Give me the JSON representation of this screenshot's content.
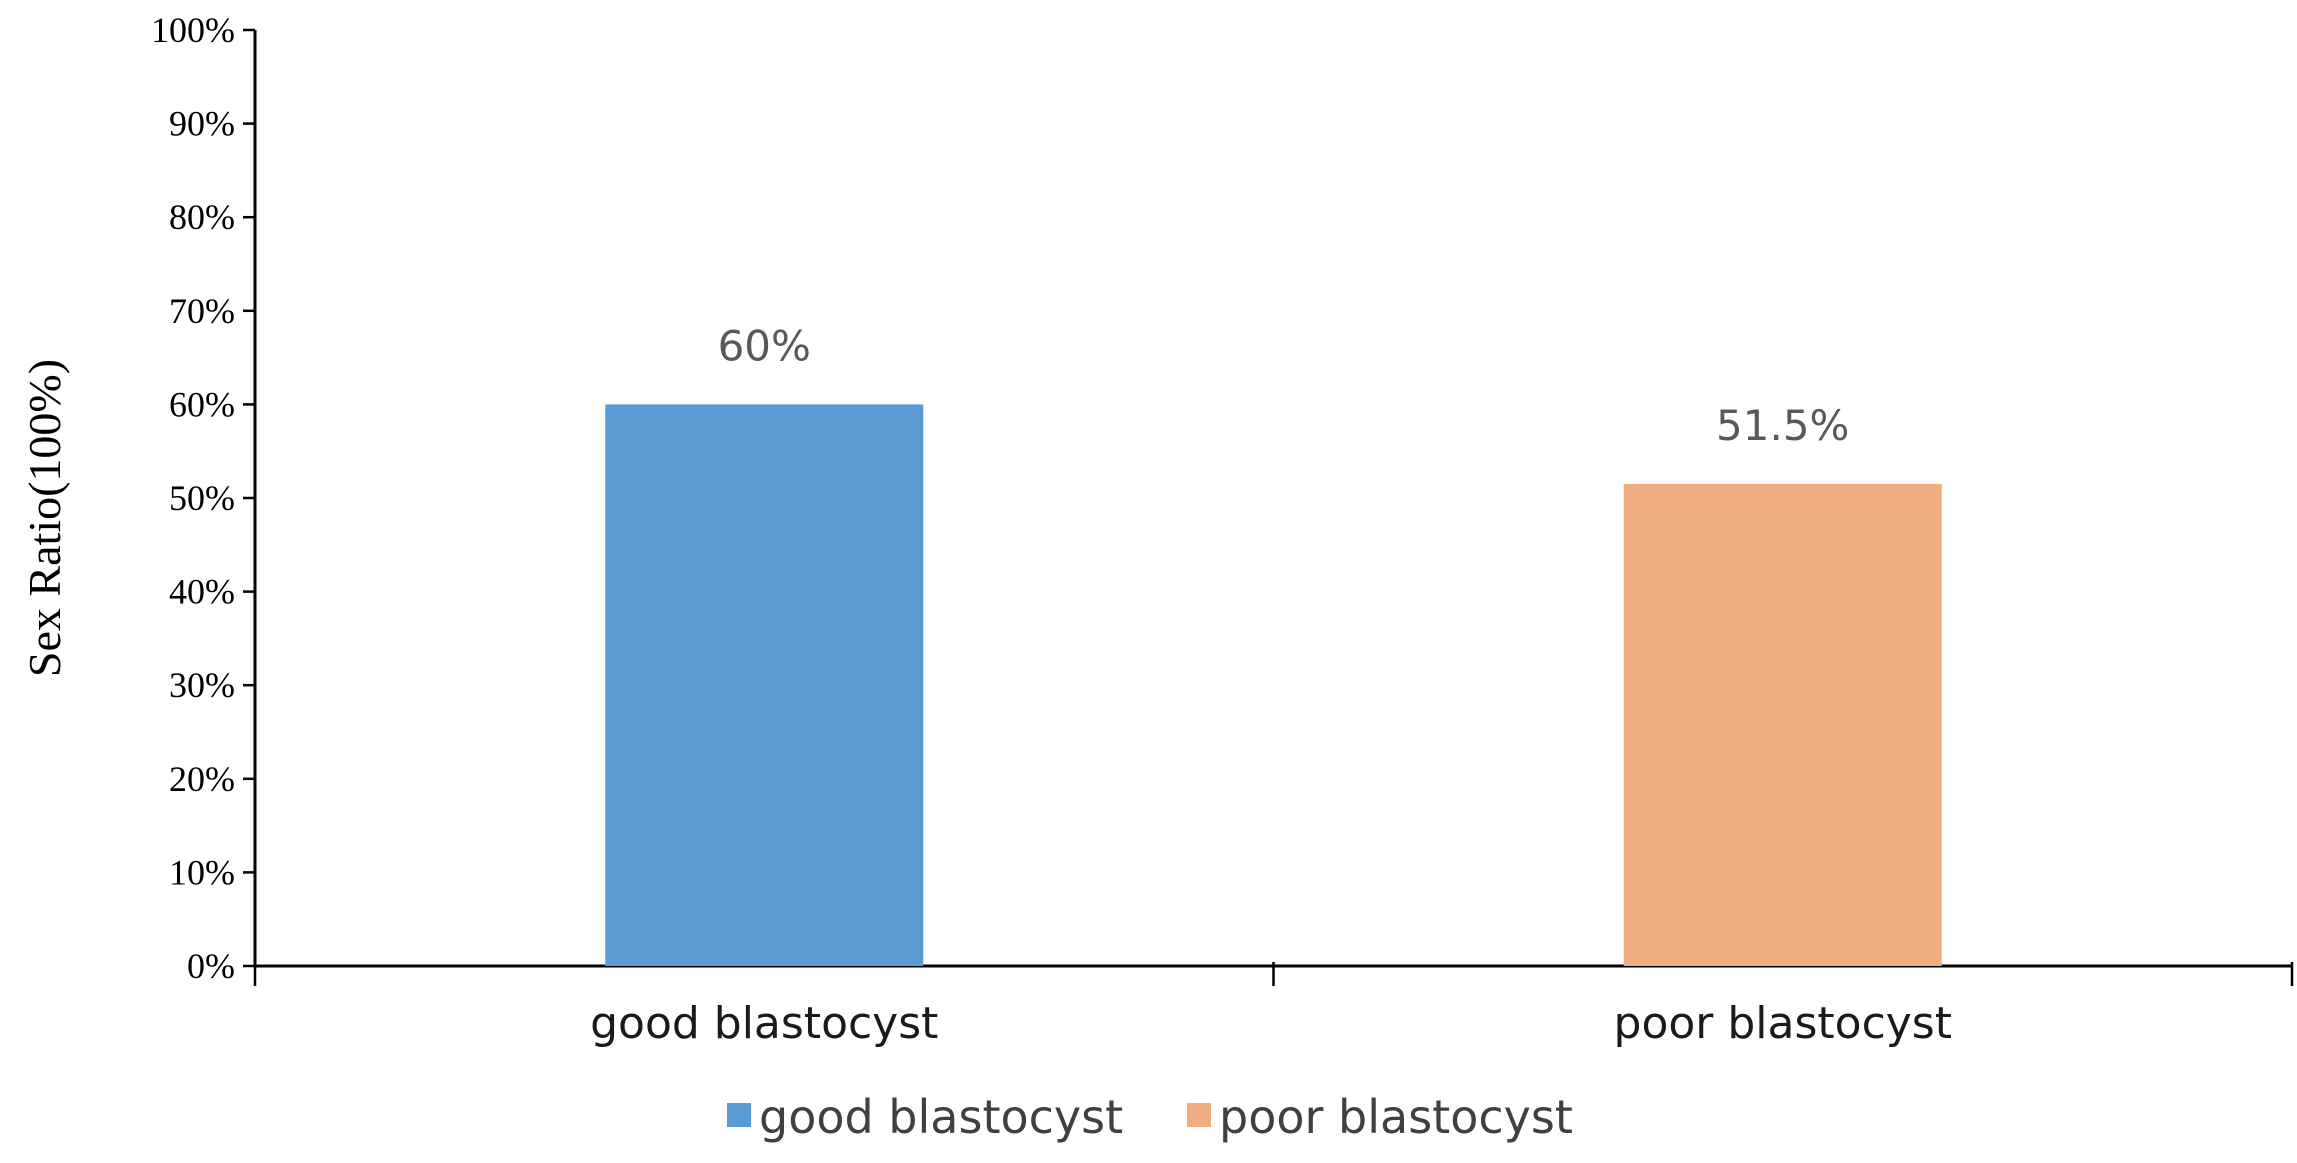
{
  "chart_data": {
    "type": "bar",
    "title": "",
    "xlabel": "",
    "ylabel": "Sex Ratio(100%)",
    "ylim": [
      0,
      100
    ],
    "y_ticks": [
      0,
      10,
      20,
      30,
      40,
      50,
      60,
      70,
      80,
      90,
      100
    ],
    "y_tick_labels": [
      "0%",
      "10%",
      "20%",
      "30%",
      "40%",
      "50%",
      "60%",
      "70%",
      "80%",
      "90%",
      "100%"
    ],
    "categories": [
      "good blastocyst",
      "poor blastocyst"
    ],
    "values": [
      60,
      51.5
    ],
    "data_labels": [
      "60%",
      "51.5%"
    ],
    "colors": [
      "#5b9bd5",
      "#f2ad82"
    ],
    "grid": false,
    "legend": {
      "position": "bottom",
      "entries": [
        {
          "label": "good blastocyst",
          "color": "#5b9bd5"
        },
        {
          "label": "poor blastocyst",
          "color": "#f2ad82"
        }
      ]
    }
  }
}
